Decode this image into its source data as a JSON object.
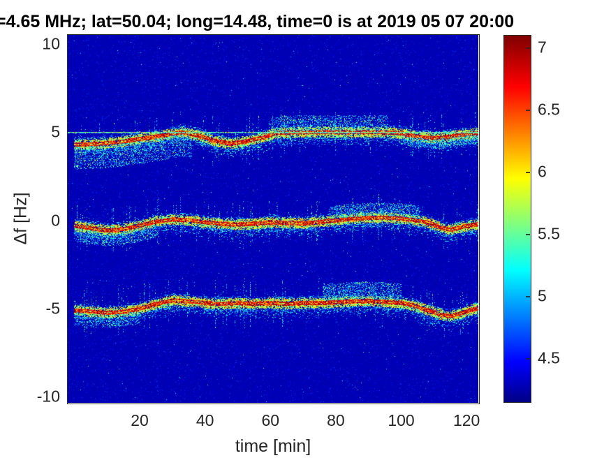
{
  "title": "=4.65 MHz;  lat=50.04; long=14.48, time=0 is at 2019 05 07 20:00",
  "axes": {
    "xlabel": "time [min]",
    "ylabel": "Δf [Hz]",
    "x_ticks": [
      20,
      40,
      60,
      80,
      100,
      120
    ],
    "y_ticks": [
      10,
      5,
      0,
      -5,
      -10
    ]
  },
  "colorbar": {
    "ticks": [
      7,
      6.5,
      6,
      5.5,
      5,
      4.5
    ],
    "vmin": 4.14,
    "vmax": 7.1,
    "colormap": "jet",
    "stops": [
      {
        "f": 0.0,
        "rgb": [
          0,
          0,
          133
        ]
      },
      {
        "f": 0.11,
        "rgb": [
          0,
          0,
          255
        ]
      },
      {
        "f": 0.36,
        "rgb": [
          0,
          255,
          255
        ]
      },
      {
        "f": 0.61,
        "rgb": [
          255,
          255,
          0
        ]
      },
      {
        "f": 0.86,
        "rgb": [
          255,
          0,
          0
        ]
      },
      {
        "f": 1.0,
        "rgb": [
          128,
          0,
          0
        ]
      }
    ]
  },
  "chart_data": {
    "type": "heatmap",
    "description": "Doppler shift spectrogram: power spectral density (log scale, ~4.5-7) vs time and frequency shift; three echo traces near +5, 0 and -5 Hz",
    "xlim": [
      -2,
      123.6
    ],
    "ylim": [
      -10.36,
      10.52
    ],
    "background_level": 4.27,
    "bands": [
      {
        "name": "upper-sideband",
        "line_hz": 5.0,
        "trace": {
          "t": [
            0,
            6,
            12,
            18,
            24,
            28,
            33,
            38,
            43,
            48,
            53,
            58,
            62,
            68,
            75,
            85,
            95,
            100,
            105,
            110,
            114,
            118,
            123
          ],
          "df": [
            4.3,
            4.32,
            4.4,
            4.55,
            4.72,
            4.85,
            5.0,
            4.8,
            4.5,
            4.35,
            4.5,
            4.72,
            4.95,
            5.0,
            5.0,
            5.0,
            5.0,
            4.92,
            4.75,
            4.65,
            4.72,
            4.85,
            4.92
          ]
        },
        "clouds": [
          {
            "t0": 0,
            "t1": 36,
            "dmin": -1.4,
            "dmax": -0.1,
            "n": 2000
          },
          {
            "t0": 60,
            "t1": 96,
            "dmin": 0.05,
            "dmax": 0.95,
            "n": 1400
          },
          {
            "t0": 100,
            "t1": 123.6,
            "dmin": -0.6,
            "dmax": -0.05,
            "n": 800
          }
        ]
      },
      {
        "name": "carrier",
        "line_hz": null,
        "trace": {
          "t": [
            0,
            5,
            10,
            15,
            20,
            25,
            30,
            35,
            40,
            45,
            50,
            55,
            60,
            65,
            70,
            75,
            80,
            85,
            90,
            95,
            100,
            104,
            108,
            112,
            115,
            118,
            121,
            123.6
          ],
          "df": [
            -0.3,
            -0.45,
            -0.58,
            -0.5,
            -0.3,
            -0.08,
            0.05,
            0.0,
            -0.12,
            -0.2,
            -0.25,
            -0.2,
            -0.12,
            -0.15,
            -0.18,
            -0.1,
            0.0,
            0.08,
            0.14,
            0.15,
            0.1,
            0.02,
            -0.12,
            -0.4,
            -0.55,
            -0.42,
            -0.28,
            -0.22
          ]
        },
        "clouds": [
          {
            "t0": 0,
            "t1": 25,
            "dmin": -0.9,
            "dmax": -0.15,
            "n": 900
          },
          {
            "t0": 78,
            "t1": 106,
            "dmin": 0.1,
            "dmax": 0.85,
            "n": 1100
          }
        ]
      },
      {
        "name": "lower-sideband",
        "line_hz": null,
        "trace": {
          "t": [
            0,
            5,
            10,
            15,
            20,
            25,
            30,
            35,
            40,
            45,
            50,
            55,
            60,
            65,
            70,
            75,
            80,
            85,
            90,
            95,
            100,
            104,
            108,
            112,
            115,
            118,
            121,
            123.6
          ],
          "df": [
            -5.12,
            -5.18,
            -5.25,
            -5.2,
            -5.02,
            -4.75,
            -4.55,
            -4.6,
            -4.7,
            -4.75,
            -4.7,
            -4.74,
            -4.7,
            -4.74,
            -4.7,
            -4.7,
            -4.66,
            -4.6,
            -4.58,
            -4.64,
            -4.7,
            -4.85,
            -5.1,
            -5.35,
            -5.45,
            -5.3,
            -5.1,
            -5.0
          ]
        },
        "clouds": [
          {
            "t0": 76,
            "t1": 100,
            "dmin": 0.15,
            "dmax": 1.1,
            "n": 1200
          },
          {
            "t0": 0,
            "t1": 20,
            "dmin": -0.85,
            "dmax": -0.1,
            "n": 600
          }
        ]
      }
    ],
    "artifact_columns_t": [
      25.5,
      8.5
    ]
  }
}
